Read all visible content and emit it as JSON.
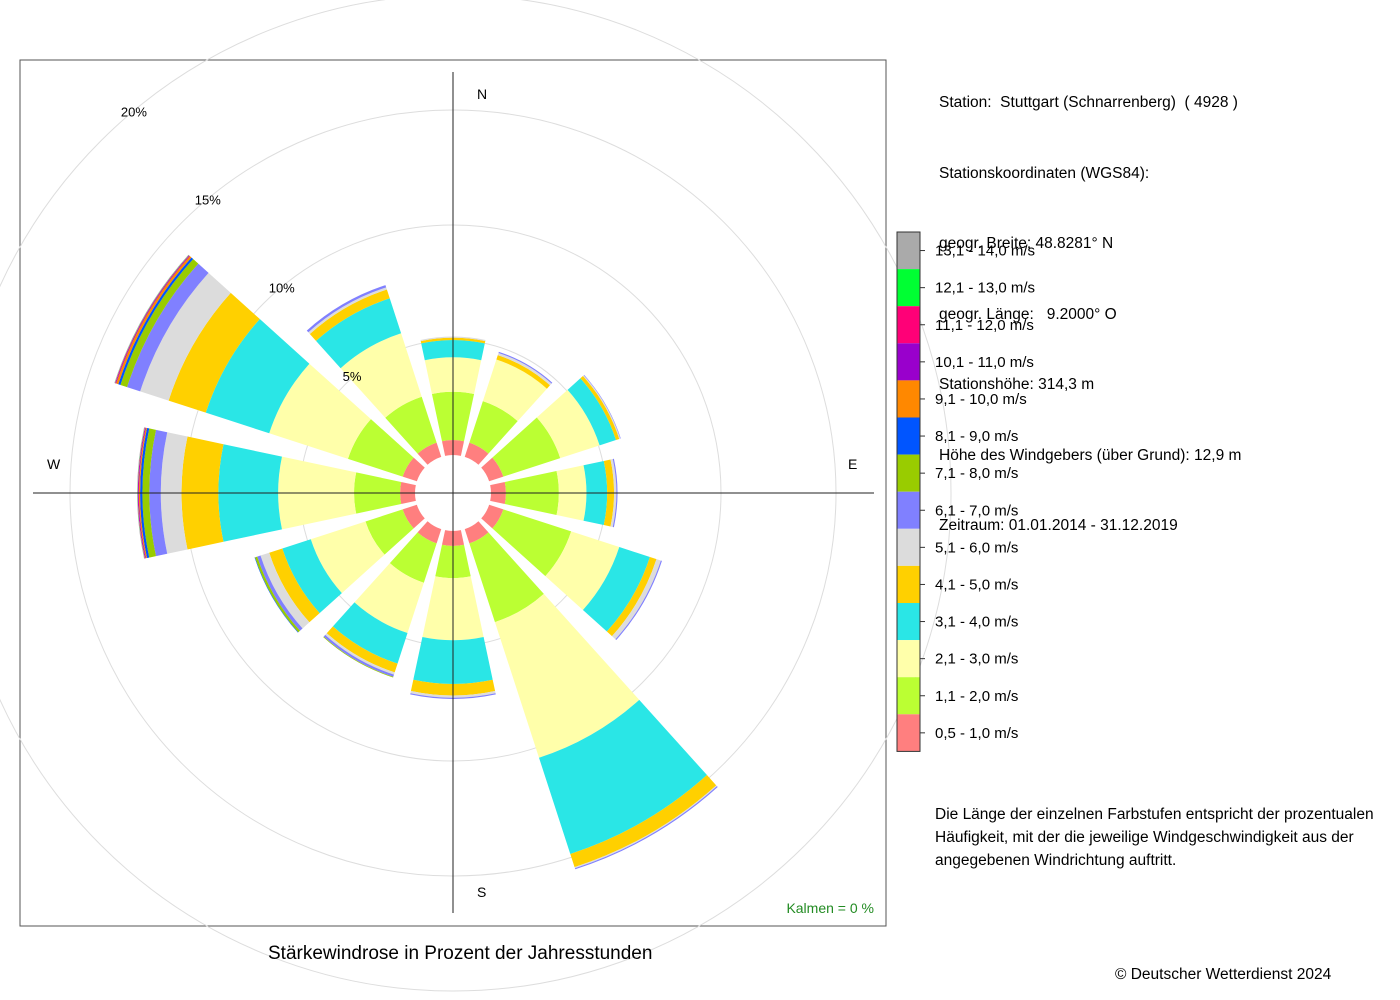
{
  "station_info": {
    "station": "Station:  Stuttgart (Schnarrenberg)  ( 4928 )",
    "coords_heading": "Stationskoordinaten (WGS84):",
    "latitude": "geogr. Breite: 48.8281° N",
    "longitude": "geogr. Länge:   9.2000° O",
    "elevation": "Stationshöhe: 314,3 m",
    "sensor_height": "Höhe des Windgebers (über Grund): 12,9 m",
    "period": "Zeitraum: 01.01.2014 - 31.12.2019"
  },
  "note": "Die Länge der einzelnen Farbstufen entspricht der prozentualen Häufigkeit, mit der die jeweilige Windgeschwindigkeit aus der angegebenen Windrichtung auftritt.",
  "caption": "Stärkewindrose in Prozent der Jahresstunden",
  "copyright": "© Deutscher Wetterdienst  2024",
  "calms": "Kalmen  =  0 %",
  "compass": {
    "north": "N",
    "east": "E",
    "south": "S",
    "west": "W"
  },
  "chart_data": {
    "type": "polar-stacked-bar",
    "title": "Stärkewindrose in Prozent der Jahresstunden",
    "ring_labels": [
      "5%",
      "10%",
      "15%",
      "20%"
    ],
    "rings": [
      5,
      10,
      15,
      20
    ],
    "sector_width_deg": 30,
    "directions_deg": [
      0,
      30,
      60,
      90,
      120,
      150,
      180,
      210,
      240,
      270,
      300,
      330
    ],
    "classes": [
      {
        "label": "0,5 - 1,0 m/s",
        "color": "#FF7F7F"
      },
      {
        "label": "1,1 - 2,0 m/s",
        "color": "#BBFF33"
      },
      {
        "label": "2,1 - 3,0 m/s",
        "color": "#FFFFAA"
      },
      {
        "label": "3,1 - 4,0 m/s",
        "color": "#2AE6E6"
      },
      {
        "label": "4,1 - 5,0 m/s",
        "color": "#FFD000"
      },
      {
        "label": "5,1 - 6,0 m/s",
        "color": "#DCDCDC"
      },
      {
        "label": "6,1 - 7,0 m/s",
        "color": "#8080FF"
      },
      {
        "label": "7,1 - 8,0 m/s",
        "color": "#99CC00"
      },
      {
        "label": "8,1 - 9,0 m/s",
        "color": "#0055FF"
      },
      {
        "label": "9,1 - 10,0 m/s",
        "color": "#FF8800"
      },
      {
        "label": "10,1 - 11,0 m/s",
        "color": "#9900CC"
      },
      {
        "label": "11,1 - 12,0 m/s",
        "color": "#FF0077"
      },
      {
        "label": "12,1 - 13,0 m/s",
        "color": "#00FF33"
      },
      {
        "label": "13,1 - 14,0 m/s",
        "color": "#AAAAAA"
      }
    ],
    "series": [
      {
        "direction": "N",
        "values": [
          0.65,
          2.1,
          1.5,
          0.75,
          0.1,
          0.05,
          0,
          0,
          0,
          0,
          0,
          0,
          0,
          0
        ]
      },
      {
        "direction": "NNE",
        "values": [
          0.65,
          1.9,
          1.9,
          0.0,
          0.2,
          0.1,
          0.05,
          0,
          0,
          0,
          0,
          0,
          0,
          0
        ]
      },
      {
        "direction": "ENE",
        "values": [
          0.65,
          2.6,
          1.8,
          0.75,
          0.15,
          0.05,
          0.02,
          0,
          0,
          0,
          0,
          0,
          0,
          0
        ]
      },
      {
        "direction": "E",
        "values": [
          0.65,
          2.3,
          1.2,
          0.9,
          0.3,
          0.1,
          0.05,
          0,
          0,
          0,
          0,
          0,
          0,
          0
        ]
      },
      {
        "direction": "ESE",
        "values": [
          0.65,
          3.1,
          2.2,
          1.4,
          0.3,
          0.2,
          0.05,
          0,
          0,
          0,
          0,
          0,
          0,
          0
        ]
      },
      {
        "direction": "SSE",
        "values": [
          0.65,
          3.6,
          6.2,
          4.4,
          0.6,
          0.05,
          0.05,
          0,
          0,
          0,
          0,
          0,
          0,
          0
        ]
      },
      {
        "direction": "S",
        "values": [
          0.65,
          1.4,
          2.7,
          1.9,
          0.5,
          0.1,
          0.05,
          0,
          0,
          0,
          0,
          0,
          0,
          0
        ]
      },
      {
        "direction": "SSW",
        "values": [
          0.65,
          1.8,
          2.3,
          1.4,
          0.4,
          0.1,
          0.1,
          0.03,
          0,
          0,
          0,
          0,
          0,
          0
        ]
      },
      {
        "direction": "WSW",
        "values": [
          0.65,
          1.7,
          2.5,
          1.3,
          0.6,
          0.4,
          0.15,
          0.1,
          0.02,
          0,
          0,
          0,
          0,
          0
        ]
      },
      {
        "direction": "W",
        "values": [
          0.65,
          2.0,
          3.3,
          2.6,
          1.6,
          0.9,
          0.5,
          0.3,
          0.1,
          0.05,
          0.03,
          0.02,
          0.01,
          0.02
        ]
      },
      {
        "direction": "WNW",
        "values": [
          0.65,
          2.5,
          3.6,
          2.9,
          1.7,
          1.3,
          0.6,
          0.3,
          0.1,
          0.1,
          0.03,
          0.02,
          0.01,
          0.02
        ]
      },
      {
        "direction": "NNW",
        "values": [
          0.65,
          2.1,
          2.9,
          1.6,
          0.4,
          0.1,
          0.1,
          0,
          0,
          0,
          0,
          0,
          0,
          0
        ]
      }
    ]
  }
}
